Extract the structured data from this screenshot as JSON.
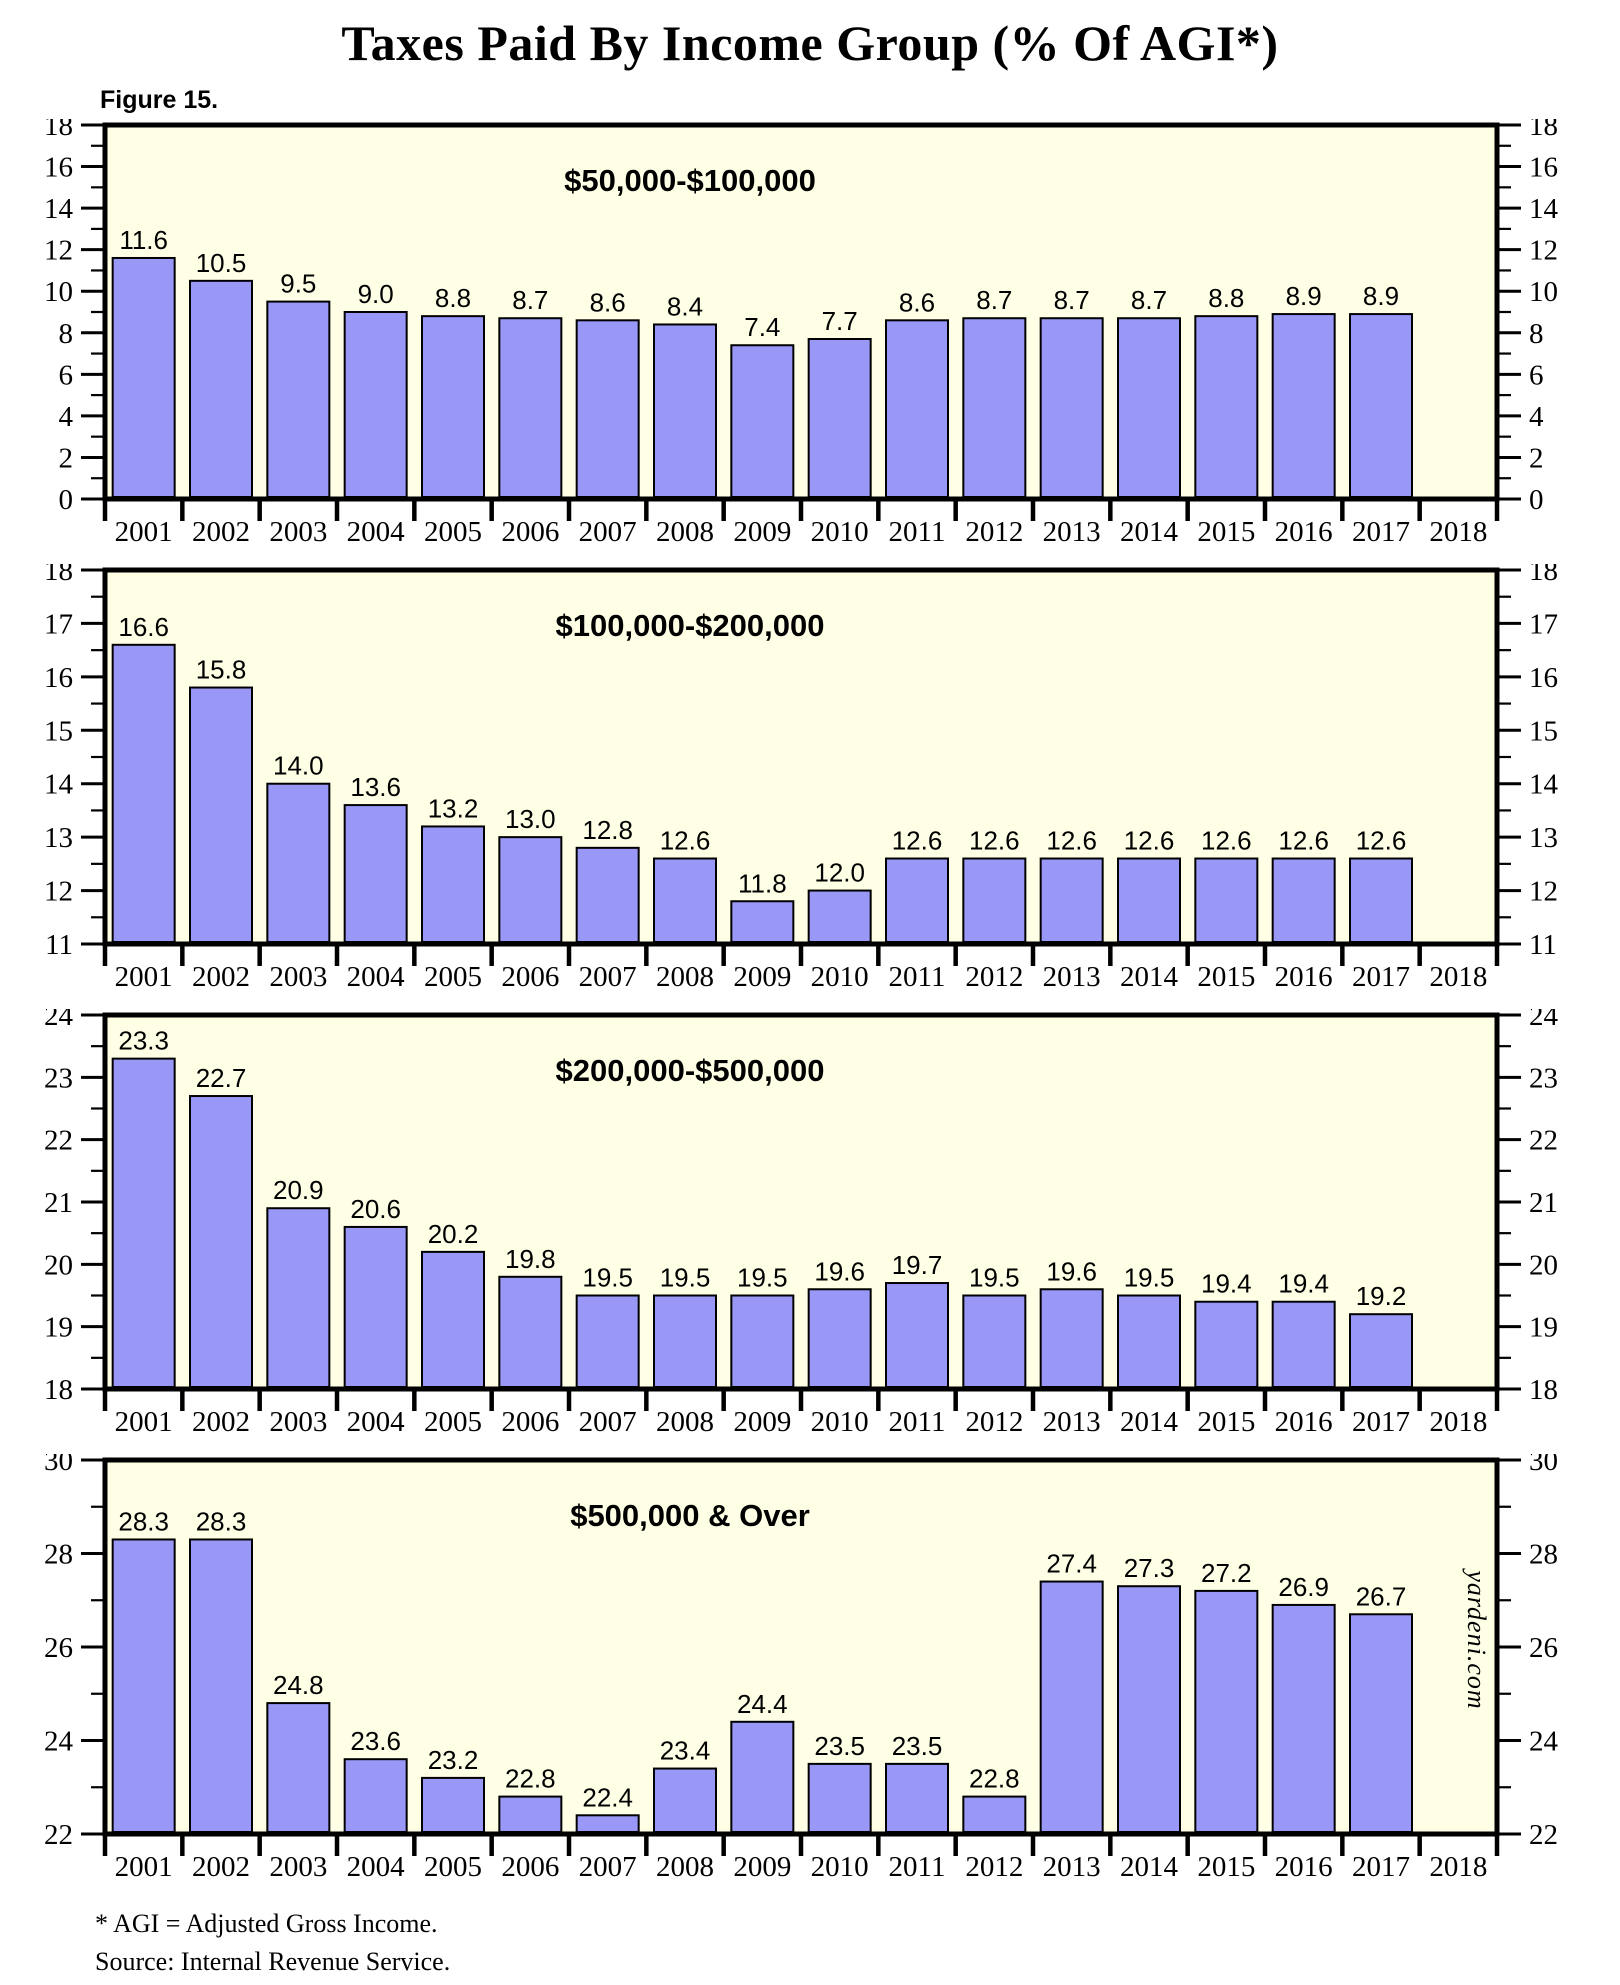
{
  "page": {
    "title": "Taxes Paid By Income Group (% Of AGI*)",
    "figure_label": "Figure 15.",
    "footnote_line1": "* AGI = Adjusted Gross Income.",
    "footnote_line2": "Source: Internal Revenue Service.",
    "watermark": "yardeni.com"
  },
  "colors": {
    "bar_fill": "#9998F7",
    "bar_edge": "#000000",
    "plot_bg": "#FFFFE6",
    "axis": "#000000",
    "text": "#000000"
  },
  "years": [
    "2001",
    "2002",
    "2003",
    "2004",
    "2005",
    "2006",
    "2007",
    "2008",
    "2009",
    "2010",
    "2011",
    "2012",
    "2013",
    "2014",
    "2015",
    "2016",
    "2017",
    "2018"
  ],
  "chart_data": [
    {
      "type": "bar",
      "title": "$50,000-$100,000",
      "values": [
        11.6,
        10.5,
        9.5,
        9.0,
        8.8,
        8.7,
        8.6,
        8.4,
        7.4,
        7.7,
        8.6,
        8.7,
        8.7,
        8.7,
        8.8,
        8.9,
        8.9,
        null
      ],
      "ylim": [
        0,
        18
      ],
      "ytick_major": 2,
      "ytick_minor": 1,
      "grid": false,
      "bar_labels": true
    },
    {
      "type": "bar",
      "title": "$100,000-$200,000",
      "values": [
        16.6,
        15.8,
        14.0,
        13.6,
        13.2,
        13.0,
        12.8,
        12.6,
        11.8,
        12.0,
        12.6,
        12.6,
        12.6,
        12.6,
        12.6,
        12.6,
        12.6,
        null
      ],
      "ylim": [
        11,
        18
      ],
      "ytick_major": 1,
      "ytick_minor": 0.5,
      "grid": false,
      "bar_labels": true
    },
    {
      "type": "bar",
      "title": "$200,000-$500,000",
      "values": [
        23.3,
        22.7,
        20.9,
        20.6,
        20.2,
        19.8,
        19.5,
        19.5,
        19.5,
        19.6,
        19.7,
        19.5,
        19.6,
        19.5,
        19.4,
        19.4,
        19.2,
        null
      ],
      "ylim": [
        18,
        24
      ],
      "ytick_major": 1,
      "ytick_minor": 0.5,
      "grid": false,
      "bar_labels": true
    },
    {
      "type": "bar",
      "title": "$500,000 & Over",
      "values": [
        28.3,
        28.3,
        24.8,
        23.6,
        23.2,
        22.8,
        22.4,
        23.4,
        24.4,
        23.5,
        23.5,
        22.8,
        27.4,
        27.3,
        27.2,
        26.9,
        26.7,
        null
      ],
      "ylim": [
        22,
        30
      ],
      "ytick_major": 2,
      "ytick_minor": 1,
      "grid": false,
      "bar_labels": true
    }
  ]
}
